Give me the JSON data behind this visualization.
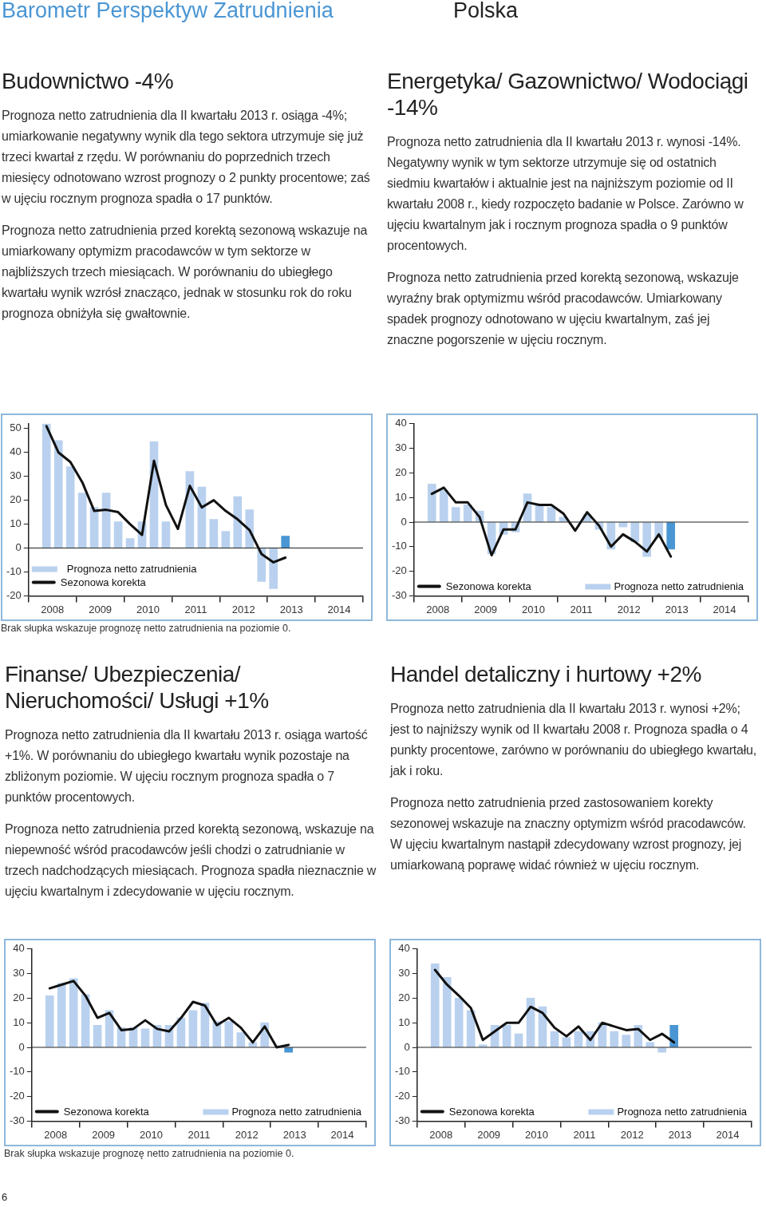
{
  "chart_data": [
    {
      "type": "other",
      "title": "Barometr Perspektyw Zatrudnienia",
      "subtitle": "Polska",
      "annotations": [
        "6"
      ]
    },
    {
      "type": "bar",
      "title": "Budownictwo -4%",
      "subtitle": "Prognoza netto zatrudnienia dla II kwartału 2013 r. osiąga -4%; umiarkowanie negatywny wynik dla tego sektora utrzymuje się już trzeci kwartał z rzędu. W porównaniu do poprzednich trzech miesięcy odnotowano wzrost prognozy o 2 punkty procentowe; zaś w ujęciu rocznym prognoza spadła o 17 punktów.\nPrognoza netto zatrudnienia przed korektą sezonową wskazuje na umiarkowany optymizm pracodawców w tym sektorze w najbliższych trzech miesiącach. W porównaniu do ubiegłego kwartału wynik wzrósł znacząco, jednak w stosunku rok do roku prognoza obniżyła się gwałtownie.",
      "annotations": [
        "Brak słupka wskazuje prognozę netto zatrudnienia na poziomie 0."
      ],
      "legend": "bottom left",
      "x": [
        2008.375,
        2008.625,
        2008.875,
        2009.125,
        2009.375,
        2009.625,
        2009.875,
        2010.125,
        2010.375,
        2010.625,
        2010.875,
        2011.125,
        2011.375,
        2011.625,
        2011.875,
        2012.125,
        2012.375,
        2012.625,
        2012.875,
        2013.125,
        2013.375
      ],
      "series": [
        {
          "name": "Prognoza netto zatrudnienia",
          "type": "bar",
          "color": "#b9d1ee",
          "colors": [
            "#b9d1ee",
            "#b9d1ee",
            "#b9d1ee",
            "#b9d1ee",
            "#b9d1ee",
            "#b9d1ee",
            "#b9d1ee",
            "#b9d1ee",
            "#b9d1ee",
            "#b9d1ee",
            "#b9d1ee",
            "#b9d1ee",
            "#b9d1ee",
            "#b9d1ee",
            "#b9d1ee",
            "#b9d1ee",
            "#b9d1ee",
            "#b9d1ee",
            "#b9d1ee",
            "#b9d1ee",
            "#4a96d4"
          ],
          "values": [
            52,
            45,
            34,
            23,
            17,
            23,
            11,
            4,
            11,
            44.5,
            11,
            0,
            32,
            25.5,
            12,
            7,
            21.5,
            16,
            -14,
            -17,
            5
          ]
        },
        {
          "name": "Sezonowa korekta",
          "type": "line",
          "color": "#111111",
          "values": [
            51,
            40,
            36,
            27.5,
            15.5,
            16,
            15,
            10,
            5.5,
            36.5,
            18,
            8,
            26,
            17,
            20,
            15.5,
            12,
            7.5,
            -2.5,
            -6,
            -4
          ]
        }
      ],
      "xlim": [
        2008,
        2015
      ],
      "xticks": [
        {
          "value": 2008.5,
          "label": "2008"
        },
        {
          "value": 2009.5,
          "label": "2009"
        },
        {
          "value": 2010.5,
          "label": "2010"
        },
        {
          "value": 2011.5,
          "label": "2011"
        },
        {
          "value": 2012.5,
          "label": "2012"
        },
        {
          "value": 2013.5,
          "label": "2013"
        },
        {
          "value": 2014.5,
          "label": "2014"
        }
      ],
      "ylim": [
        -20,
        52
      ],
      "yticks": [
        -20,
        -10,
        0,
        10,
        20,
        30,
        40,
        50
      ],
      "ref_lines": [
        {
          "axis": "y",
          "value": 0
        }
      ]
    },
    {
      "type": "bar",
      "title": "Energetyka/ Gazownictwo/ Wodociągi -14%",
      "subtitle": "Prognoza netto zatrudnienia dla II kwartału 2013 r. wynosi -14%. Negatywny wynik w tym sektorze utrzymuje się od ostatnich siedmiu kwartałów i aktualnie jest na najniższym poziomie od II kwartału 2008 r., kiedy rozpoczęto badanie w Polsce. Zarówno w ujęciu kwartalnym jak i rocznym prognoza spadła o 9 punktów procentowych.\nPrognoza netto zatrudnienia przed korektą sezonową, wskazuje wyraźny brak optymizmu wśród pracodawców. Umiarkowany spadek prognozy odnotowano w ujęciu kwartalnym, zaś jej znaczne pogorszenie w ujęciu rocznym.",
      "legend": "bottom",
      "x": [
        2008.375,
        2008.625,
        2008.875,
        2009.125,
        2009.375,
        2009.625,
        2009.875,
        2010.125,
        2010.375,
        2010.625,
        2010.875,
        2011.125,
        2011.375,
        2011.625,
        2011.875,
        2012.125,
        2012.375,
        2012.625,
        2012.875,
        2013.125,
        2013.375
      ],
      "series": [
        {
          "name": "Sezonowa korekta",
          "type": "line",
          "color": "#111111",
          "values": [
            11.5,
            14,
            8,
            8,
            2,
            -13.5,
            -3,
            -3,
            8,
            7,
            7,
            3.5,
            -3.5,
            4,
            -1.5,
            -10,
            -5,
            -8,
            -12,
            -5,
            -14
          ]
        },
        {
          "name": "Prognoza netto zatrudnienia",
          "type": "bar",
          "color": "#b9d1ee",
          "colors": [
            "#b9d1ee",
            "#b9d1ee",
            "#b9d1ee",
            "#b9d1ee",
            "#b9d1ee",
            "#b9d1ee",
            "#b9d1ee",
            "#b9d1ee",
            "#b9d1ee",
            "#b9d1ee",
            "#b9d1ee",
            "#b9d1ee",
            "#b9d1ee",
            "#b9d1ee",
            "#b9d1ee",
            "#b9d1ee",
            "#b9d1ee",
            "#b9d1ee",
            "#b9d1ee",
            "#b9d1ee",
            "#4a96d4"
          ],
          "values": [
            15.5,
            13,
            6,
            7,
            4.5,
            -13,
            -5,
            -4,
            11.5,
            7,
            6,
            2,
            0,
            3,
            -3,
            -11,
            -2,
            -8,
            -14,
            -6.5,
            -11
          ]
        }
      ],
      "xlim": [
        2008,
        2015
      ],
      "xticks": [
        {
          "value": 2008.5,
          "label": "2008"
        },
        {
          "value": 2009.5,
          "label": "2009"
        },
        {
          "value": 2010.5,
          "label": "2010"
        },
        {
          "value": 2011.5,
          "label": "2011"
        },
        {
          "value": 2012.5,
          "label": "2012"
        },
        {
          "value": 2013.5,
          "label": "2013"
        },
        {
          "value": 2014.5,
          "label": "2014"
        }
      ],
      "ylim": [
        -30,
        40
      ],
      "yticks": [
        -30,
        -20,
        -10,
        0,
        10,
        20,
        30,
        40
      ],
      "ref_lines": [
        {
          "axis": "y",
          "value": 0
        }
      ]
    },
    {
      "type": "bar",
      "title": "Finanse/ Ubezpieczenia/ Nieruchomości/ Usługi +1%",
      "subtitle": "Prognoza netto zatrudnienia dla II kwartału 2013 r. osiąga wartość +1%. W porównaniu do ubiegłego kwartału wynik pozostaje na zbliżonym poziomie. W ujęciu rocznym prognoza spadła o 7 punktów procentowych.\nPrognoza netto zatrudnienia przed korektą sezonową, wskazuje na niepewność wśród pracodawców jeśli chodzi o zatrudnianie w trzech nadchodzących miesiącach. Prognoza spadła nieznacznie w ujęciu kwartalnym i zdecydowanie w ujęciu rocznym.",
      "annotations": [
        "Brak słupka wskazuje prognozę netto zatrudnienia na poziomie 0."
      ],
      "legend": "bottom",
      "x": [
        2008.375,
        2008.625,
        2008.875,
        2009.125,
        2009.375,
        2009.625,
        2009.875,
        2010.125,
        2010.375,
        2010.625,
        2010.875,
        2011.125,
        2011.375,
        2011.625,
        2011.875,
        2012.125,
        2012.375,
        2012.625,
        2012.875,
        2013.125,
        2013.375
      ],
      "series": [
        {
          "name": "Sezonowa korekta",
          "type": "line",
          "color": "#111111",
          "values": [
            24,
            25.5,
            27,
            21,
            12,
            14,
            7,
            7.5,
            11,
            7.5,
            6.5,
            12,
            18.5,
            17,
            9,
            12,
            8,
            2,
            8.5,
            0,
            1
          ]
        },
        {
          "name": "Prognoza netto zatrudnienia",
          "type": "bar",
          "color": "#b9d1ee",
          "colors": [
            "#b9d1ee",
            "#b9d1ee",
            "#b9d1ee",
            "#b9d1ee",
            "#b9d1ee",
            "#b9d1ee",
            "#b9d1ee",
            "#b9d1ee",
            "#b9d1ee",
            "#b9d1ee",
            "#b9d1ee",
            "#b9d1ee",
            "#b9d1ee",
            "#b9d1ee",
            "#b9d1ee",
            "#b9d1ee",
            "#b9d1ee",
            "#b9d1ee",
            "#b9d1ee",
            "#b9d1ee",
            "#4a96d4"
          ],
          "values": [
            21,
            26,
            28,
            21.5,
            9,
            15,
            8,
            8,
            7.5,
            9,
            9,
            12,
            15,
            18,
            10.5,
            10.5,
            6,
            2,
            10,
            0,
            -2
          ]
        }
      ],
      "xlim": [
        2008,
        2015
      ],
      "xticks": [
        {
          "value": 2008.5,
          "label": "2008"
        },
        {
          "value": 2009.5,
          "label": "2009"
        },
        {
          "value": 2010.5,
          "label": "2010"
        },
        {
          "value": 2011.5,
          "label": "2011"
        },
        {
          "value": 2012.5,
          "label": "2012"
        },
        {
          "value": 2013.5,
          "label": "2013"
        },
        {
          "value": 2014.5,
          "label": "2014"
        }
      ],
      "ylim": [
        -30,
        40
      ],
      "yticks": [
        -30,
        -20,
        -10,
        0,
        10,
        20,
        30,
        40
      ],
      "ref_lines": [
        {
          "axis": "y",
          "value": 0
        }
      ]
    },
    {
      "type": "bar",
      "title": "Handel detaliczny i hurtowy +2%",
      "subtitle": "Prognoza netto zatrudnienia dla II kwartału 2013 r. wynosi +2%; jest to najniższy wynik od II kwartału 2008 r. Prognoza spadła o 4 punkty procentowe, zarówno w porównaniu do ubiegłego kwartału, jak i roku.\nPrognoza netto zatrudnienia przed zastosowaniem korekty sezonowej wskazuje na znaczny optymizm wśród pracodawców. W ujęciu kwartalnym nastąpił zdecydowany wzrost prognozy, jej umiarkowaną poprawę widać również w ujęciu rocznym.",
      "legend": "bottom",
      "x": [
        2008.375,
        2008.625,
        2008.875,
        2009.125,
        2009.375,
        2009.625,
        2009.875,
        2010.125,
        2010.375,
        2010.625,
        2010.875,
        2011.125,
        2011.375,
        2011.625,
        2011.875,
        2012.125,
        2012.375,
        2012.625,
        2012.875,
        2013.125,
        2013.375
      ],
      "series": [
        {
          "name": "Sezonowa korekta",
          "type": "line",
          "color": "#111111",
          "values": [
            31.5,
            25.5,
            21,
            16,
            3,
            6.5,
            10,
            10,
            16.5,
            14,
            8,
            4.5,
            8.5,
            3,
            10,
            8.5,
            7,
            7.5,
            3,
            5.5,
            2
          ]
        },
        {
          "name": "Prognoza netto zatrudnienia",
          "type": "bar",
          "color": "#b9d1ee",
          "colors": [
            "#b9d1ee",
            "#b9d1ee",
            "#b9d1ee",
            "#b9d1ee",
            "#b9d1ee",
            "#b9d1ee",
            "#b9d1ee",
            "#b9d1ee",
            "#b9d1ee",
            "#b9d1ee",
            "#b9d1ee",
            "#b9d1ee",
            "#b9d1ee",
            "#b9d1ee",
            "#b9d1ee",
            "#b9d1ee",
            "#b9d1ee",
            "#b9d1ee",
            "#b9d1ee",
            "#b9d1ee",
            "#4a96d4"
          ],
          "values": [
            34,
            28.5,
            20,
            15,
            1,
            9,
            9,
            5.5,
            20,
            16.5,
            6.5,
            4,
            6.5,
            6.5,
            10,
            6.5,
            5,
            9,
            2,
            -2,
            9
          ]
        }
      ],
      "xlim": [
        2008,
        2015
      ],
      "xticks": [
        {
          "value": 2008.5,
          "label": "2008"
        },
        {
          "value": 2009.5,
          "label": "2009"
        },
        {
          "value": 2010.5,
          "label": "2010"
        },
        {
          "value": 2011.5,
          "label": "2011"
        },
        {
          "value": 2012.5,
          "label": "2012"
        },
        {
          "value": 2013.5,
          "label": "2013"
        },
        {
          "value": 2014.5,
          "label": "2014"
        }
      ],
      "ylim": [
        -30,
        40
      ],
      "yticks": [
        -30,
        -20,
        -10,
        0,
        10,
        20,
        30,
        40
      ],
      "ref_lines": [
        {
          "axis": "y",
          "value": 0
        }
      ]
    }
  ]
}
